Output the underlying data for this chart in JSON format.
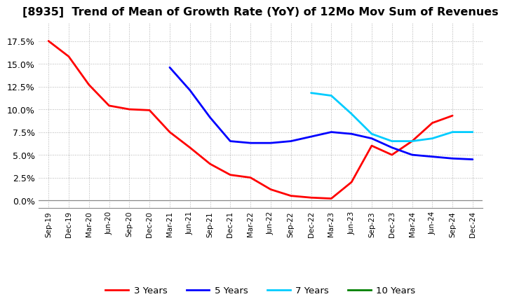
{
  "title": "[8935]  Trend of Mean of Growth Rate (YoY) of 12Mo Mov Sum of Revenues",
  "x_labels": [
    "Sep-19",
    "Dec-19",
    "Mar-20",
    "Jun-20",
    "Sep-20",
    "Dec-20",
    "Mar-21",
    "Jun-21",
    "Sep-21",
    "Dec-21",
    "Mar-22",
    "Jun-22",
    "Sep-22",
    "Dec-22",
    "Mar-23",
    "Jun-23",
    "Sep-23",
    "Dec-23",
    "Mar-24",
    "Jun-24",
    "Sep-24",
    "Dec-24"
  ],
  "series": {
    "3 Years": {
      "color": "#ff0000",
      "x_indices": [
        0,
        1,
        2,
        3,
        4,
        5,
        6,
        7,
        8,
        9,
        10,
        11,
        12,
        13,
        14,
        15,
        16,
        17,
        18,
        19,
        20
      ],
      "y": [
        0.175,
        0.158,
        0.127,
        0.104,
        0.1,
        0.099,
        0.075,
        0.058,
        0.04,
        0.028,
        0.025,
        0.012,
        0.005,
        0.003,
        0.002,
        0.02,
        0.06,
        0.05,
        0.065,
        0.085,
        0.093
      ]
    },
    "5 Years": {
      "color": "#0000ff",
      "x_indices": [
        6,
        7,
        8,
        9,
        10,
        11,
        12,
        13,
        14,
        15,
        16,
        17,
        18,
        19,
        20,
        21
      ],
      "y": [
        0.146,
        0.121,
        0.091,
        0.065,
        0.063,
        0.063,
        0.065,
        0.07,
        0.075,
        0.073,
        0.068,
        0.058,
        0.05,
        0.048,
        0.046,
        0.045
      ]
    },
    "7 Years": {
      "color": "#00ccff",
      "x_indices": [
        13,
        14,
        15,
        16,
        17,
        18,
        19,
        20,
        21
      ],
      "y": [
        0.118,
        0.115,
        0.095,
        0.073,
        0.065,
        0.065,
        0.068,
        0.075,
        0.075
      ]
    },
    "10 Years": {
      "color": "#008000",
      "x_indices": [],
      "y": []
    }
  },
  "ylim": [
    -0.008,
    0.195
  ],
  "yticks": [
    0.0,
    0.025,
    0.05,
    0.075,
    0.1,
    0.125,
    0.15,
    0.175
  ],
  "background_color": "#ffffff",
  "grid_color": "#b0b0b0",
  "title_fontsize": 11.5,
  "legend_labels": [
    "3 Years",
    "5 Years",
    "7 Years",
    "10 Years"
  ],
  "legend_colors": [
    "#ff0000",
    "#0000ff",
    "#00ccff",
    "#008000"
  ]
}
